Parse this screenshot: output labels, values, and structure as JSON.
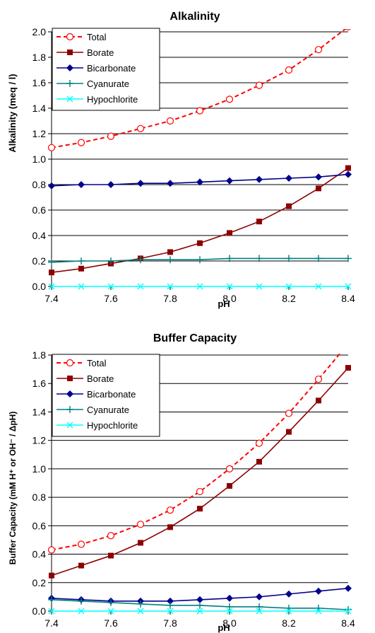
{
  "chart_data": [
    {
      "type": "line",
      "title": "Alkalinity",
      "xlabel": "pH",
      "ylabel": "Alkalinity (meq / l)",
      "xlim": [
        7.4,
        8.4
      ],
      "ylim": [
        0.0,
        2.0
      ],
      "x_ticks": [
        "7.4",
        "7.6",
        "7.8",
        "8.0",
        "8.2",
        "8.4"
      ],
      "y_ticks": [
        "0.0",
        "0.2",
        "0.4",
        "0.6",
        "0.8",
        "1.0",
        "1.2",
        "1.4",
        "1.6",
        "1.8",
        "2.0"
      ],
      "grid": "horizontal",
      "legend": "top-left",
      "x": [
        7.4,
        7.5,
        7.6,
        7.7,
        7.8,
        7.9,
        8.0,
        8.1,
        8.2,
        8.3,
        8.4
      ],
      "series": [
        {
          "name": "Total",
          "color": "#ff0000",
          "marker": "open-circle",
          "dash": true,
          "values": [
            1.09,
            1.13,
            1.18,
            1.24,
            1.3,
            1.38,
            1.47,
            1.58,
            1.7,
            1.86,
            2.04
          ]
        },
        {
          "name": "Borate",
          "color": "#8b0000",
          "marker": "square",
          "dash": false,
          "values": [
            0.11,
            0.14,
            0.18,
            0.22,
            0.27,
            0.34,
            0.42,
            0.51,
            0.63,
            0.77,
            0.93
          ]
        },
        {
          "name": "Bicarbonate",
          "color": "#00008b",
          "marker": "diamond",
          "dash": false,
          "values": [
            0.79,
            0.8,
            0.8,
            0.81,
            0.81,
            0.82,
            0.83,
            0.84,
            0.85,
            0.86,
            0.88
          ]
        },
        {
          "name": "Cyanurate",
          "color": "#008080",
          "marker": "plus",
          "dash": false,
          "values": [
            0.19,
            0.2,
            0.2,
            0.21,
            0.21,
            0.21,
            0.22,
            0.22,
            0.22,
            0.22,
            0.22
          ]
        },
        {
          "name": "Hypochlorite",
          "color": "#00ffff",
          "marker": "x",
          "dash": false,
          "values": [
            0.0,
            0.0,
            0.0,
            0.0,
            0.0,
            0.0,
            0.0,
            0.0,
            0.0,
            0.0,
            0.0
          ]
        }
      ]
    },
    {
      "type": "line",
      "title": "Buffer Capacity",
      "xlabel": "pH",
      "ylabel": "Buffer Capacity (mM H⁺ or OH⁻ / ΔpH)",
      "xlim": [
        7.4,
        8.4
      ],
      "ylim": [
        0.0,
        1.8
      ],
      "x_ticks": [
        "7.4",
        "7.6",
        "7.8",
        "8.0",
        "8.2",
        "8.4"
      ],
      "y_ticks": [
        "0.0",
        "0.2",
        "0.4",
        "0.6",
        "0.8",
        "1.0",
        "1.2",
        "1.4",
        "1.6",
        "1.8"
      ],
      "grid": "horizontal",
      "legend": "top-left",
      "x": [
        7.4,
        7.5,
        7.6,
        7.7,
        7.8,
        7.9,
        8.0,
        8.1,
        8.2,
        8.3,
        8.4
      ],
      "series": [
        {
          "name": "Total",
          "color": "#ff0000",
          "marker": "open-circle",
          "dash": true,
          "values": [
            0.43,
            0.47,
            0.53,
            0.61,
            0.71,
            0.84,
            1.0,
            1.18,
            1.39,
            1.63,
            1.88
          ]
        },
        {
          "name": "Borate",
          "color": "#8b0000",
          "marker": "square",
          "dash": false,
          "values": [
            0.25,
            0.32,
            0.39,
            0.48,
            0.59,
            0.72,
            0.88,
            1.05,
            1.26,
            1.48,
            1.71
          ]
        },
        {
          "name": "Bicarbonate",
          "color": "#00008b",
          "marker": "diamond",
          "dash": false,
          "values": [
            0.09,
            0.08,
            0.07,
            0.07,
            0.07,
            0.08,
            0.09,
            0.1,
            0.12,
            0.14,
            0.16
          ]
        },
        {
          "name": "Cyanurate",
          "color": "#008080",
          "marker": "plus",
          "dash": false,
          "values": [
            0.08,
            0.07,
            0.06,
            0.05,
            0.04,
            0.04,
            0.03,
            0.03,
            0.02,
            0.02,
            0.01
          ]
        },
        {
          "name": "Hypochlorite",
          "color": "#00ffff",
          "marker": "x",
          "dash": false,
          "values": [
            0.0,
            0.0,
            0.0,
            0.0,
            0.0,
            0.0,
            0.0,
            0.0,
            0.0,
            0.0,
            0.0
          ]
        }
      ]
    }
  ]
}
